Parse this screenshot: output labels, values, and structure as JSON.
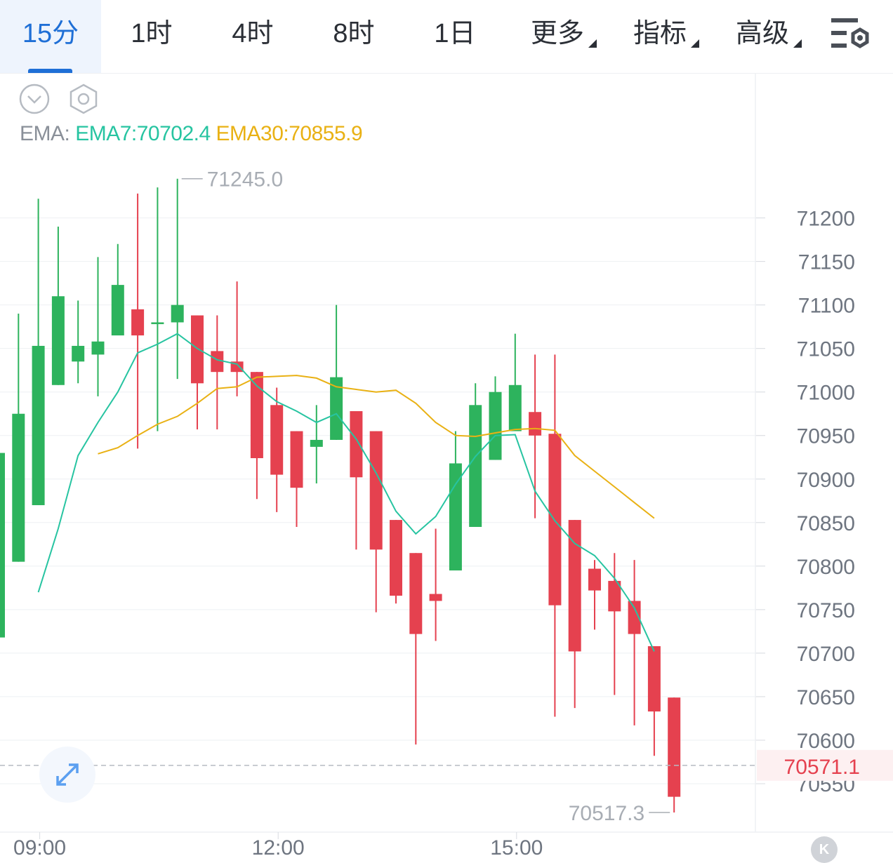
{
  "tabs": [
    {
      "label": "15分",
      "active": true
    },
    {
      "label": "1时",
      "active": false
    },
    {
      "label": "4时",
      "active": false
    },
    {
      "label": "8时",
      "active": false
    },
    {
      "label": "1日",
      "active": false
    },
    {
      "label": "更多",
      "active": false,
      "dropdown": true
    },
    {
      "label": "指标",
      "active": false,
      "dropdown": true
    },
    {
      "label": "高级",
      "active": false,
      "dropdown": true
    }
  ],
  "toolbar": {
    "settings_icon": "sliders-settings-icon",
    "collapse_icon": "chevron-down-circle-icon",
    "chart_settings_icon": "hexagon-gear-icon",
    "expand_icon": "expand-arrows-icon"
  },
  "ema_legend": {
    "label": "EMA:",
    "ema7_text": "EMA7:70702.4",
    "ema30_text": "EMA30:70855.9"
  },
  "badge": {
    "text": "K"
  },
  "colors": {
    "up": "#2db35d",
    "down": "#e5414f",
    "ema7": "#27c4a1",
    "ema30": "#e9b114",
    "accent": "#1f6fd6",
    "price_tag": "#e5414f"
  },
  "chart_data": {
    "type": "candlestick",
    "ylim": [
      70496,
      71273
    ],
    "y_ticks": [
      "71200",
      "71150",
      "71100",
      "71050",
      "71000",
      "70950",
      "70900",
      "70850",
      "70800",
      "70750",
      "70700",
      "70650",
      "70600",
      "70550"
    ],
    "x_ticks": [
      {
        "label": "09:00",
        "index": 2
      },
      {
        "label": "12:00",
        "index": 14
      },
      {
        "label": "15:00",
        "index": 26
      }
    ],
    "candles": [
      {
        "o": 70718,
        "c": 70930,
        "h": 70930,
        "l": 70718
      },
      {
        "o": 70805,
        "c": 70975,
        "h": 71090,
        "l": 70805
      },
      {
        "o": 70870,
        "c": 71053,
        "h": 71222,
        "l": 70870
      },
      {
        "o": 71008,
        "c": 71110,
        "h": 71190,
        "l": 71008
      },
      {
        "o": 71035,
        "c": 71053,
        "h": 71105,
        "l": 71010
      },
      {
        "o": 71043,
        "c": 71058,
        "h": 71155,
        "l": 70995
      },
      {
        "o": 71065,
        "c": 71123,
        "h": 71170,
        "l": 71065
      },
      {
        "o": 71095,
        "c": 71065,
        "h": 71228,
        "l": 70935
      },
      {
        "o": 71080,
        "c": 71080,
        "h": 71235,
        "l": 70955
      },
      {
        "o": 71080,
        "c": 71100,
        "h": 71245,
        "l": 71015
      },
      {
        "o": 71088,
        "c": 71010,
        "h": 71088,
        "l": 70957
      },
      {
        "o": 71047,
        "c": 71023,
        "h": 71088,
        "l": 70957
      },
      {
        "o": 71035,
        "c": 71023,
        "h": 71127,
        "l": 70995
      },
      {
        "o": 71023,
        "c": 70924,
        "h": 71023,
        "l": 70877
      },
      {
        "o": 70985,
        "c": 70905,
        "h": 71005,
        "l": 70862
      },
      {
        "o": 70955,
        "c": 70890,
        "h": 70955,
        "l": 70845
      },
      {
        "o": 70937,
        "c": 70945,
        "h": 70985,
        "l": 70895
      },
      {
        "o": 70945,
        "c": 71017,
        "h": 71100,
        "l": 70945
      },
      {
        "o": 70978,
        "c": 70902,
        "h": 70978,
        "l": 70819
      },
      {
        "o": 70955,
        "c": 70819,
        "h": 70955,
        "l": 70747
      },
      {
        "o": 70853,
        "c": 70766,
        "h": 70853,
        "l": 70757
      },
      {
        "o": 70815,
        "c": 70722,
        "h": 70815,
        "l": 70595
      },
      {
        "o": 70768,
        "c": 70760,
        "h": 70843,
        "l": 70714
      },
      {
        "o": 70795,
        "c": 70918,
        "h": 70955,
        "l": 70795
      },
      {
        "o": 70845,
        "c": 70985,
        "h": 71010,
        "l": 70845
      },
      {
        "o": 70922,
        "c": 71000,
        "h": 71018,
        "l": 70922
      },
      {
        "o": 70955,
        "c": 71008,
        "h": 71067,
        "l": 70955
      },
      {
        "o": 70977,
        "c": 70950,
        "h": 71043,
        "l": 70855
      },
      {
        "o": 70952,
        "c": 70755,
        "h": 71043,
        "l": 70627
      },
      {
        "o": 70853,
        "c": 70702,
        "h": 70853,
        "l": 70637
      },
      {
        "o": 70797,
        "c": 70772,
        "h": 70807,
        "l": 70727
      },
      {
        "o": 70783,
        "c": 70748,
        "h": 70815,
        "l": 70652
      },
      {
        "o": 70760,
        "c": 70722,
        "h": 70807,
        "l": 70617
      },
      {
        "o": 70708,
        "c": 70633,
        "h": 70708,
        "l": 70582
      },
      {
        "o": 70649,
        "c": 70535,
        "h": 70649,
        "l": 70517
      }
    ],
    "ema7": [
      70770,
      70843,
      70927,
      70965,
      71000,
      71045,
      71055,
      71067,
      71050,
      71037,
      71032,
      71007,
      70989,
      70978,
      70965,
      70975,
      70946,
      70907,
      70863,
      70837,
      70857,
      70894,
      70926,
      70950,
      70951,
      70886,
      70852,
      70826,
      70812,
      70786,
      70752,
      70702
    ],
    "ema7_start": 2,
    "ema30": [
      70929,
      70936,
      70950,
      70963,
      70972,
      70987,
      71004,
      71006,
      71017,
      71018,
      71019,
      71016,
      71006,
      71003,
      71000,
      71002,
      70987,
      70965,
      70950,
      70949,
      70953,
      70957,
      70958,
      70956,
      70927,
      70909,
      70891,
      70873,
      70855
    ],
    "ema30_start": 5,
    "high_label": {
      "text": "71245.0",
      "index": 9
    },
    "low_label": {
      "text": "70517.3",
      "index": 34
    },
    "last_price": {
      "text": "70571.1",
      "value": 70571.1
    }
  }
}
